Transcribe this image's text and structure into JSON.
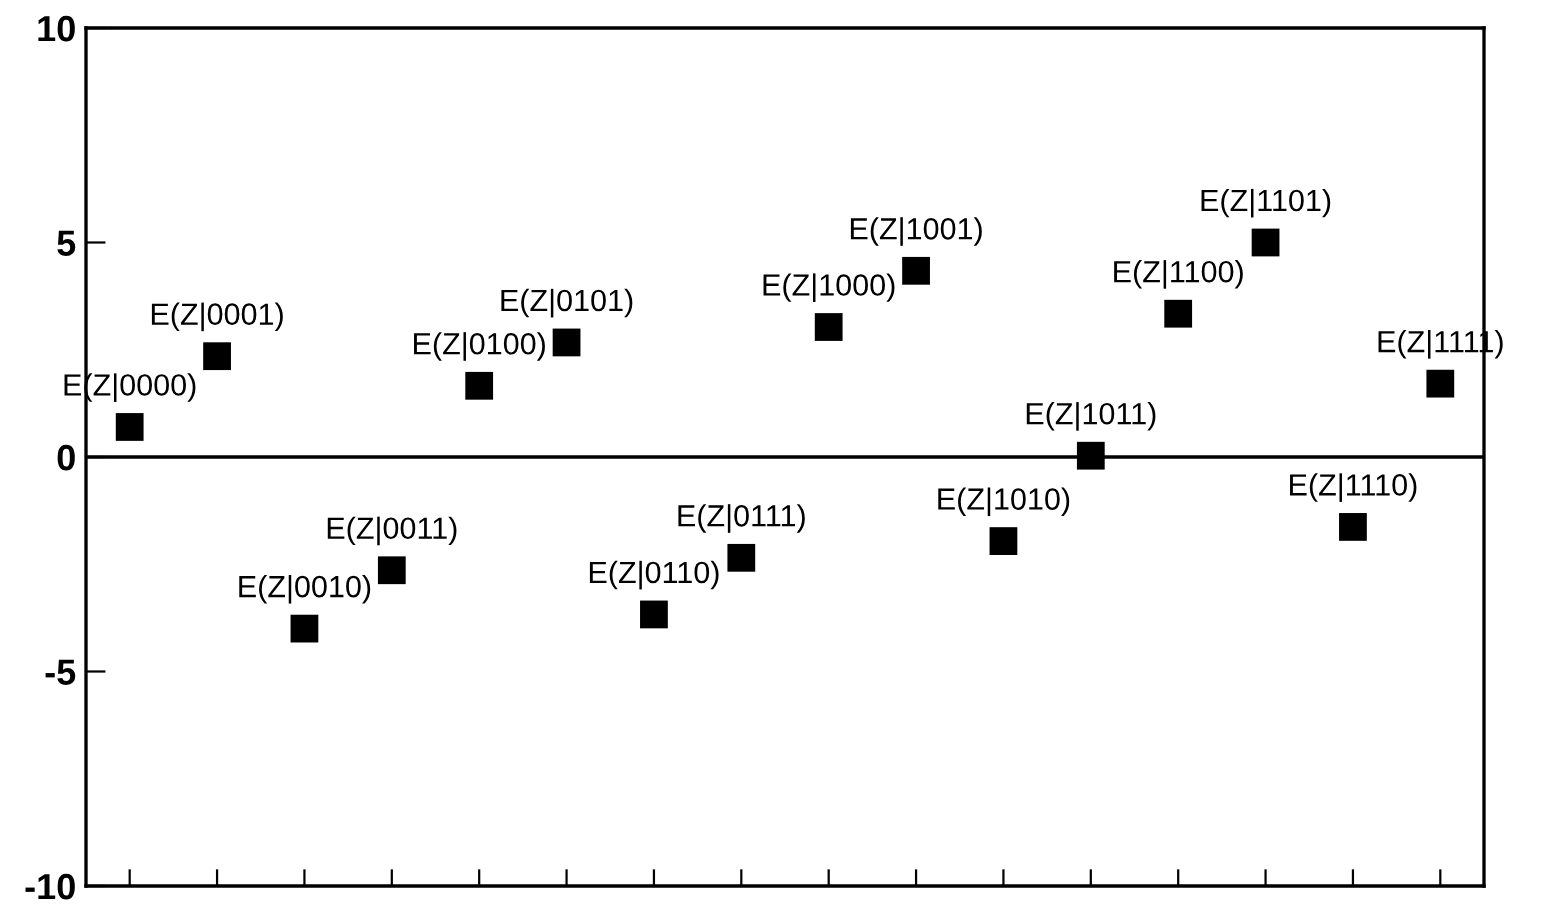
{
  "chart_data": {
    "type": "scatter",
    "categories": [
      null,
      null,
      null,
      null,
      null,
      null,
      null,
      null,
      null,
      null,
      null,
      null,
      null,
      null,
      null,
      null
    ],
    "series": [
      {
        "color": "#000000",
        "values": [
          0.7,
          2.35,
          -4.0,
          -2.64,
          1.66,
          2.67,
          -3.67,
          -2.35,
          3.03,
          4.34,
          -1.96,
          0.03,
          3.34,
          5.0,
          -1.63,
          1.71
        ]
      }
    ],
    "marker": "square",
    "ylim": [
      -10,
      10
    ],
    "yticks": [
      -10,
      -5,
      0,
      5,
      10
    ],
    "tick_labels": "y",
    "grid": false,
    "ref_lines": [
      {
        "axis": "y",
        "value": 0,
        "color": "#000000"
      }
    ],
    "annotations": [
      {
        "text": "E(Z|0000)",
        "y": 0.7
      },
      {
        "text": "E(Z|0001)",
        "y": 2.35
      },
      {
        "text": "E(Z|0010)",
        "y": -4.0
      },
      {
        "text": "E(Z|0011)",
        "y": -2.64
      },
      {
        "text": "E(Z|0100)",
        "y": 1.66
      },
      {
        "text": "E(Z|0101)",
        "y": 2.67
      },
      {
        "text": "E(Z|0110)",
        "y": -3.67
      },
      {
        "text": "E(Z|0111)",
        "y": -2.35
      },
      {
        "text": "E(Z|1000)",
        "y": 3.03
      },
      {
        "text": "E(Z|1001)",
        "y": 4.34
      },
      {
        "text": "E(Z|1010)",
        "y": -1.96
      },
      {
        "text": "E(Z|1011)",
        "y": 0.03
      },
      {
        "text": "E(Z|1100)",
        "y": 3.34
      },
      {
        "text": "E(Z|1101)",
        "y": 5.0
      },
      {
        "text": "E(Z|1110)",
        "y": -1.63
      },
      {
        "text": "E(Z|1111)",
        "y": 1.71
      }
    ]
  }
}
